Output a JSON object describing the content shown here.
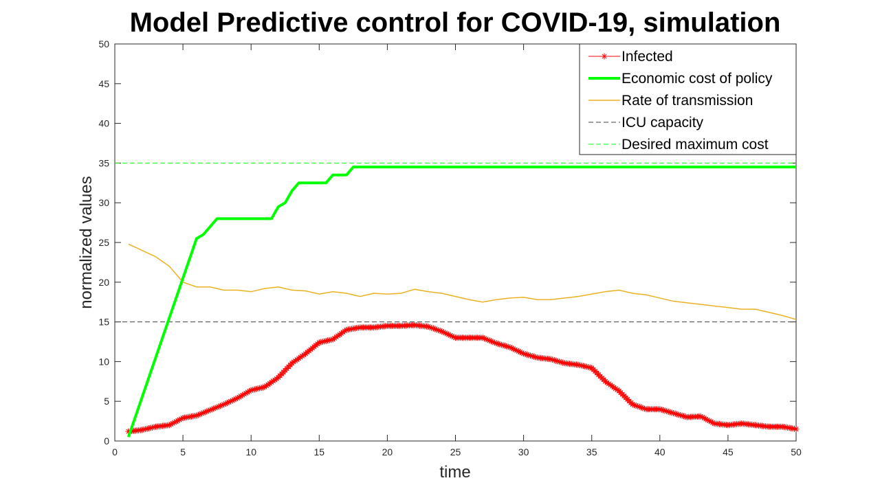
{
  "chart_data": {
    "type": "line",
    "title": "Model Predictive control for COVID-19, simulation",
    "xlabel": "time",
    "ylabel": "normalized values",
    "xlim": [
      0,
      50
    ],
    "ylim": [
      0,
      50
    ],
    "xticks": [
      0,
      5,
      10,
      15,
      20,
      25,
      30,
      35,
      40,
      45,
      50
    ],
    "yticks": [
      0,
      5,
      10,
      15,
      20,
      25,
      30,
      35,
      40,
      45,
      50
    ],
    "grid": false,
    "legend_position": "top-right",
    "series": [
      {
        "name": "Infected",
        "color": "#ff0000",
        "style": "line-with-star-markers",
        "x": [
          1,
          2,
          3,
          4,
          5,
          6,
          7,
          8,
          9,
          10,
          11,
          12,
          13,
          14,
          15,
          16,
          17,
          18,
          19,
          20,
          21,
          22,
          23,
          24,
          25,
          26,
          27,
          28,
          29,
          30,
          31,
          32,
          33,
          34,
          35,
          36,
          37,
          38,
          39,
          40,
          41,
          42,
          43,
          44,
          45,
          46,
          47,
          48,
          49,
          50
        ],
        "y": [
          1.2,
          1.4,
          1.8,
          2.0,
          2.9,
          3.2,
          3.9,
          4.6,
          5.4,
          6.4,
          6.8,
          8.0,
          9.8,
          11.0,
          12.4,
          12.8,
          14.0,
          14.3,
          14.3,
          14.5,
          14.5,
          14.6,
          14.4,
          13.8,
          13.0,
          13.0,
          13.0,
          12.3,
          11.8,
          11.0,
          10.5,
          10.3,
          9.8,
          9.6,
          9.2,
          7.5,
          6.3,
          4.6,
          4.0,
          4.0,
          3.5,
          3.0,
          3.1,
          2.2,
          2.0,
          2.2,
          2.0,
          1.8,
          1.8,
          1.5
        ]
      },
      {
        "name": "Economic cost of policy",
        "color": "#00ff00",
        "style": "thick-line",
        "x": [
          1,
          6,
          6.5,
          7,
          7.5,
          11.5,
          12,
          12.5,
          13,
          13.5,
          15.5,
          16,
          17,
          17.5,
          50
        ],
        "y": [
          0.5,
          25.5,
          26,
          27,
          28,
          28,
          29.5,
          30,
          31.5,
          32.5,
          32.5,
          33.5,
          33.5,
          34.5,
          34.5
        ]
      },
      {
        "name": "Rate of transmission",
        "color": "#edb120",
        "style": "line",
        "x": [
          1,
          2,
          3,
          4,
          5,
          6,
          7,
          8,
          9,
          10,
          11,
          12,
          13,
          14,
          15,
          16,
          17,
          18,
          19,
          20,
          21,
          22,
          23,
          24,
          25,
          26,
          27,
          28,
          29,
          30,
          31,
          32,
          33,
          34,
          35,
          36,
          37,
          38,
          39,
          40,
          41,
          42,
          43,
          44,
          45,
          46,
          47,
          48,
          49,
          50
        ],
        "y": [
          24.8,
          24.0,
          23.2,
          22.0,
          20.0,
          19.4,
          19.4,
          19.0,
          19.0,
          18.8,
          19.2,
          19.4,
          19.0,
          18.9,
          18.5,
          18.8,
          18.6,
          18.2,
          18.6,
          18.5,
          18.6,
          19.1,
          18.8,
          18.6,
          18.2,
          17.8,
          17.5,
          17.8,
          18.0,
          18.1,
          17.8,
          17.8,
          18.0,
          18.2,
          18.5,
          18.8,
          19.0,
          18.6,
          18.4,
          18.0,
          17.6,
          17.4,
          17.2,
          17.0,
          16.8,
          16.6,
          16.6,
          16.2,
          15.8,
          15.3
        ]
      },
      {
        "name": "ICU capacity",
        "color": "#404040",
        "style": "dashed",
        "x": [
          0,
          50
        ],
        "y": [
          15,
          15
        ]
      },
      {
        "name": "Desired maximum cost",
        "color": "#00ff00",
        "style": "dashed",
        "x": [
          0,
          50
        ],
        "y": [
          35,
          35
        ]
      }
    ]
  }
}
